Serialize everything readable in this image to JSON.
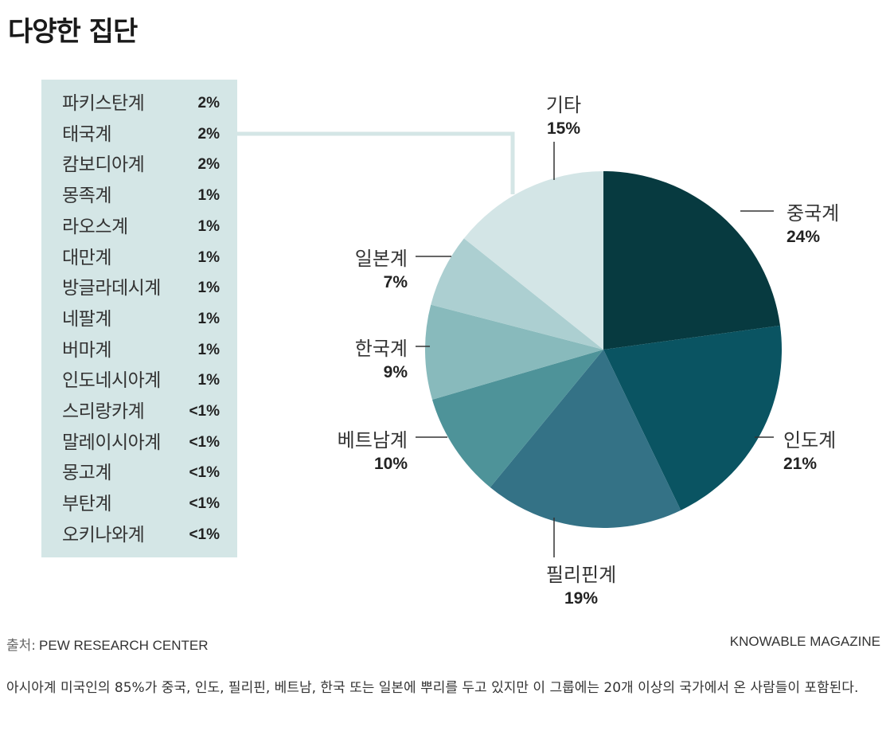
{
  "title": "다양한 집단",
  "breakdown": [
    {
      "label": "파키스탄계",
      "value": "2%"
    },
    {
      "label": "태국계",
      "value": "2%"
    },
    {
      "label": "캄보디아계",
      "value": "2%"
    },
    {
      "label": "몽족계",
      "value": "1%"
    },
    {
      "label": "라오스계",
      "value": "1%"
    },
    {
      "label": "대만계",
      "value": "1%"
    },
    {
      "label": "방글라데시계",
      "value": "1%"
    },
    {
      "label": "네팔계",
      "value": "1%"
    },
    {
      "label": "버마계",
      "value": "1%"
    },
    {
      "label": "인도네시아계",
      "value": "1%"
    },
    {
      "label": "스리랑카계",
      "value": "<1%"
    },
    {
      "label": "말레이시아계",
      "value": "<1%"
    },
    {
      "label": "몽고계",
      "value": "<1%"
    },
    {
      "label": "부탄계",
      "value": "<1%"
    },
    {
      "label": "오키나와계",
      "value": "<1%"
    }
  ],
  "chart_data": {
    "type": "pie",
    "slices": [
      {
        "label": "중국계",
        "value": 24,
        "display": "24%",
        "color": "#073a40"
      },
      {
        "label": "인도계",
        "value": 21,
        "display": "21%",
        "color": "#0a5462"
      },
      {
        "label": "필리핀계",
        "value": 19,
        "display": "19%",
        "color": "#347286"
      },
      {
        "label": "베트남계",
        "value": 10,
        "display": "10%",
        "color": "#4e9399"
      },
      {
        "label": "한국계",
        "value": 9,
        "display": "9%",
        "color": "#88babc"
      },
      {
        "label": "일본계",
        "value": 7,
        "display": "7%",
        "color": "#accfd1"
      },
      {
        "label": "기타",
        "value": 15,
        "display": "15%",
        "color": "#d3e5e6"
      }
    ]
  },
  "source_label": "출처:",
  "source": "PEW RESEARCH CENTER",
  "brand": "KNOWABLE MAGAZINE",
  "caption": "아시아계 미국인의 85%가 중국, 인도, 필리핀, 베트남, 한국 또는 일본에 뿌리를 두고 있지만 이 그룹에는 20개 이상의 국가에서 온 사람들이 포함된다."
}
